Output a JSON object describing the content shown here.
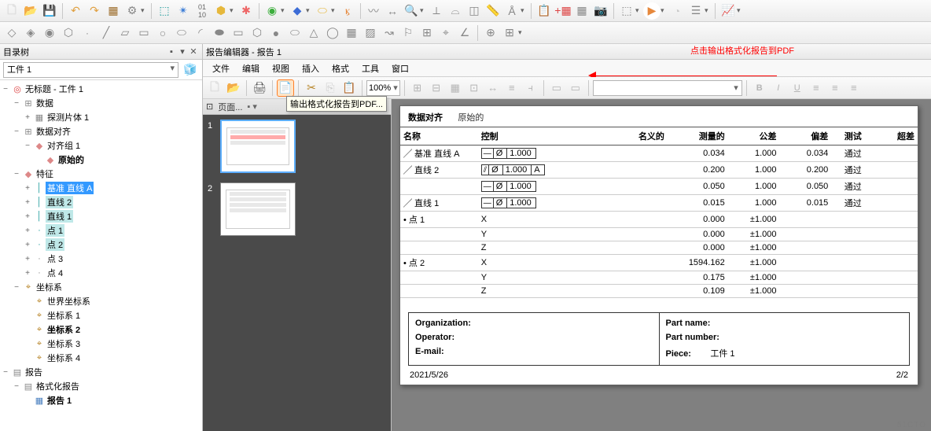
{
  "left": {
    "panel_title": "目录树",
    "piece": "工件 1",
    "root": "无标题 - 工件 1",
    "nodes": {
      "data": "数据",
      "probe": "探测片体 1",
      "align_group": "数据对齐",
      "align_set": "对齐组 1",
      "raw": "原始的",
      "features": "特征",
      "base_line_a": "基准 直线 A",
      "line2": "直线 2",
      "line1": "直线 1",
      "pt1": "点 1",
      "pt2": "点 2",
      "pt3": "点 3",
      "pt4": "点 4",
      "coord_sys": "坐标系",
      "world_cs": "世界坐标系",
      "cs1": "坐标系 1",
      "cs2": "坐标系 2",
      "cs3": "坐标系 3",
      "cs4": "坐标系 4",
      "reports": "报告",
      "fmt_reports": "格式化报告",
      "report1": "报告 1"
    }
  },
  "editor": {
    "header": "报告编辑器 - 报告 1",
    "menu": {
      "file": "文件",
      "edit": "编辑",
      "view": "视图",
      "insert": "插入",
      "format": "格式",
      "tools": "工具",
      "window": "窗口"
    },
    "tooltip": "输出格式化报告到PDF...",
    "zoom": "100%",
    "thumbs_label": "页面...",
    "annotation": "点击输出格式化报告到PDF"
  },
  "report": {
    "section_label": "数据对齐",
    "section_sub": "原始的",
    "headers": {
      "name": "名称",
      "ctrl": "控制",
      "nominal": "名义的",
      "meas": "测量的",
      "tol": "公差",
      "dev": "偏差",
      "test": "测试",
      "over": "超差"
    },
    "rows": [
      {
        "name": "基准 直线 A",
        "sym": "⌀",
        "ctrl": "— Ø 1.000",
        "meas": "0.034",
        "tol": "1.000",
        "dev": "0.034",
        "test": "通过"
      },
      {
        "name": "直线 2",
        "sym": "⌀",
        "ctrl": "⫽ Ø 1.000 A",
        "meas": "0.200",
        "tol": "1.000",
        "dev": "0.200",
        "test": "通过"
      },
      {
        "name": "",
        "sym": "",
        "ctrl": "— Ø 1.000",
        "meas": "0.050",
        "tol": "1.000",
        "dev": "0.050",
        "test": "通过"
      },
      {
        "name": "直线 1",
        "sym": "⌀",
        "ctrl": "— Ø 1.000",
        "meas": "0.015",
        "tol": "1.000",
        "dev": "0.015",
        "test": "通过"
      },
      {
        "name": "点 1",
        "sym": "•",
        "axis": "X",
        "meas": "0.000",
        "tol": "±1.000"
      },
      {
        "name": "",
        "axis": "Y",
        "meas": "0.000",
        "tol": "±1.000"
      },
      {
        "name": "",
        "axis": "Z",
        "meas": "0.000",
        "tol": "±1.000"
      },
      {
        "name": "点 2",
        "sym": "•",
        "axis": "X",
        "meas": "1594.162",
        "tol": "±1.000"
      },
      {
        "name": "",
        "axis": "Y",
        "meas": "0.175",
        "tol": "±1.000"
      },
      {
        "name": "",
        "axis": "Z",
        "meas": "0.109",
        "tol": "±1.000"
      }
    ],
    "info": {
      "org": "Organization:",
      "operator": "Operator:",
      "email": "E-mail:",
      "partname": "Part name:",
      "partnum": "Part number:",
      "piece_lbl": "Piece:",
      "piece_val": "工件 1"
    },
    "date": "2021/5/26",
    "page": "2/2"
  }
}
